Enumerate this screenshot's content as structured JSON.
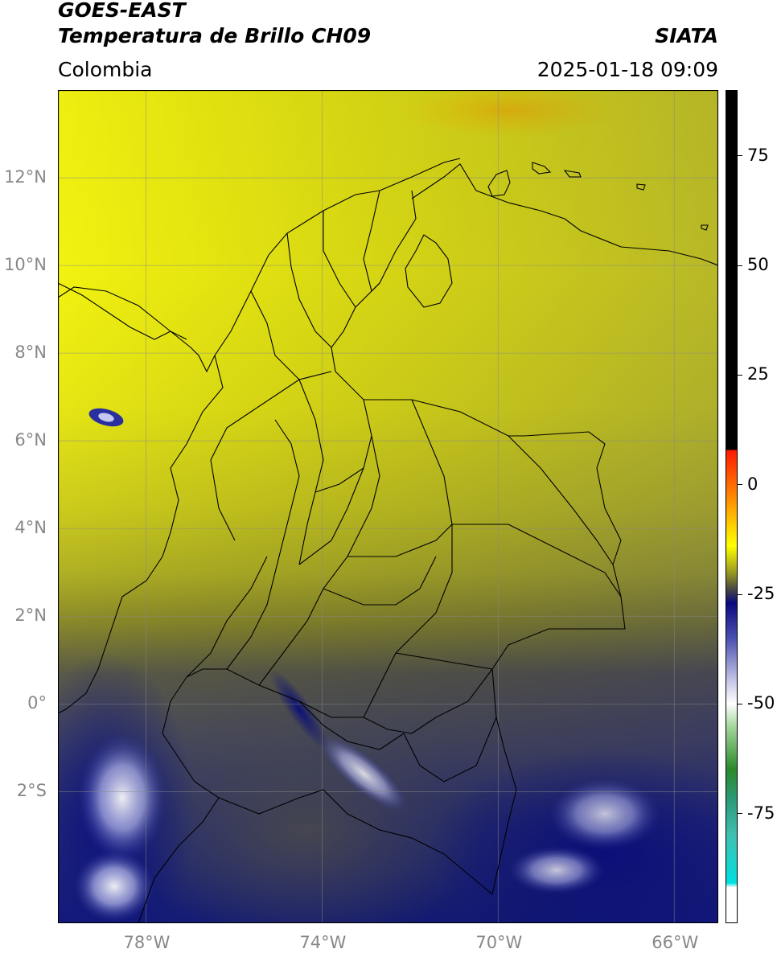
{
  "header": {
    "satellite": "GOES-EAST",
    "product": "Temperatura de Brillo CH09",
    "agency": "SIATA",
    "region": "Colombia",
    "datetime": "2025-01-18 09:09"
  },
  "map": {
    "extent_lon": [
      -80,
      -65
    ],
    "extent_lat": [
      -5,
      14
    ],
    "lat_ticks": [
      {
        "value": 12,
        "label": "12°N"
      },
      {
        "value": 10,
        "label": "10°N"
      },
      {
        "value": 8,
        "label": "8°N"
      },
      {
        "value": 6,
        "label": "6°N"
      },
      {
        "value": 4,
        "label": "4°N"
      },
      {
        "value": 2,
        "label": "2°N"
      },
      {
        "value": 0,
        "label": "0°"
      },
      {
        "value": -2,
        "label": "2°S"
      }
    ],
    "lon_ticks": [
      {
        "value": -78,
        "label": "78°W"
      },
      {
        "value": -74,
        "label": "74°W"
      },
      {
        "value": -70,
        "label": "70°W"
      },
      {
        "value": -66,
        "label": "66°W"
      }
    ],
    "gridlines": true,
    "colors": {
      "warm_yellow": "#eeee11",
      "olive": "#b8b820",
      "gray": "#55554f",
      "navy": "#1a1f80",
      "cloud_white": "#e0e4ff",
      "border": "#000000"
    }
  },
  "colorbar": {
    "range": [
      -100,
      90
    ],
    "ticks": [
      {
        "value": 75,
        "label": "75"
      },
      {
        "value": 50,
        "label": "50"
      },
      {
        "value": 25,
        "label": "25"
      },
      {
        "value": 0,
        "label": "0"
      },
      {
        "value": -25,
        "label": "-25"
      },
      {
        "value": -50,
        "label": "-50"
      },
      {
        "value": -75,
        "label": "-75"
      }
    ],
    "stops": [
      {
        "value": 90,
        "color": "#000000"
      },
      {
        "value": 8,
        "color": "#000000"
      },
      {
        "value": 7.9,
        "color": "#ff1a00"
      },
      {
        "value": 0,
        "color": "#ff6a00"
      },
      {
        "value": -10,
        "color": "#ffd700"
      },
      {
        "value": -14,
        "color": "#ffff00"
      },
      {
        "value": -20,
        "color": "#9a9a20"
      },
      {
        "value": -24,
        "color": "#444444"
      },
      {
        "value": -27,
        "color": "#0a0a80"
      },
      {
        "value": -35,
        "color": "#4a50b0"
      },
      {
        "value": -45,
        "color": "#c8c8e8"
      },
      {
        "value": -50,
        "color": "#ffffff"
      },
      {
        "value": -55,
        "color": "#a8d8a0"
      },
      {
        "value": -65,
        "color": "#2a8a2a"
      },
      {
        "value": -72,
        "color": "#2a9a7a"
      },
      {
        "value": -80,
        "color": "#40c0b0"
      },
      {
        "value": -91,
        "color": "#00e0e0"
      },
      {
        "value": -92,
        "color": "#ffffff"
      },
      {
        "value": -100,
        "color": "#ffffff"
      }
    ]
  }
}
